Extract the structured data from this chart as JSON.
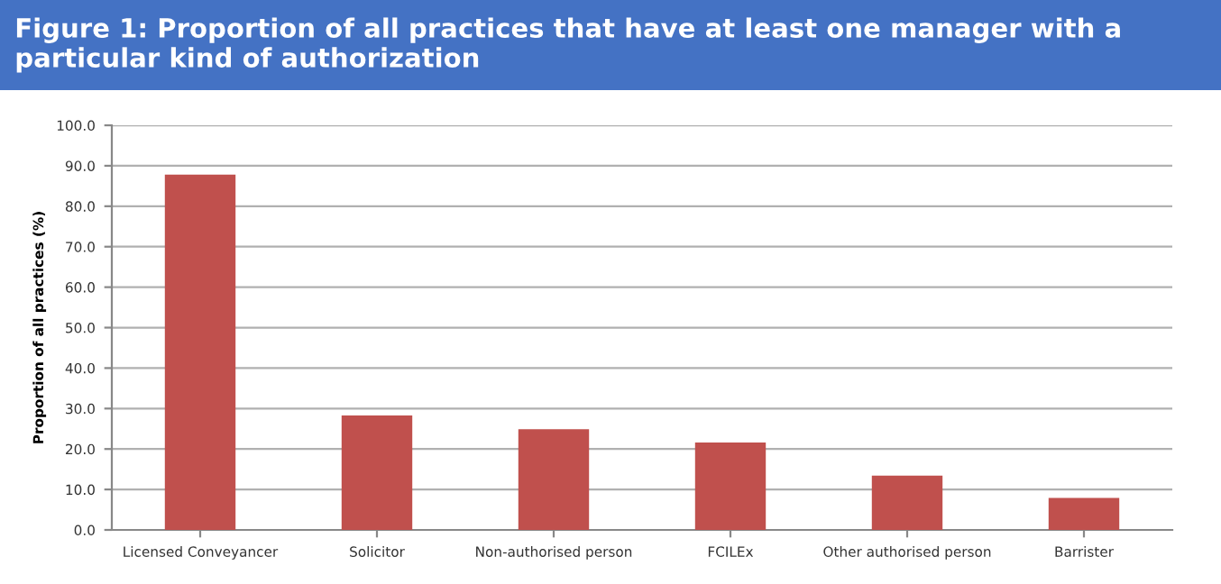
{
  "chart_data": {
    "type": "bar",
    "title": "Figure 1: Proportion of all practices that have at least one manager with a particular kind of authorization",
    "ylabel": "Proportion of all practices (%)",
    "categories": [
      "Licensed Conveyancer",
      "Solicitor",
      "Non-authorised person",
      "FCILEx",
      "Other authorised person",
      "Barrister"
    ],
    "values": [
      87.8,
      28.3,
      24.9,
      21.6,
      13.4,
      7.9
    ],
    "color": "#c0504d",
    "ylim": [
      0,
      100
    ],
    "yticks": [
      {
        "value": 0,
        "label": "0.0"
      },
      {
        "value": 10,
        "label": "10.0"
      },
      {
        "value": 20,
        "label": "20.0"
      },
      {
        "value": 30,
        "label": "30.0"
      },
      {
        "value": 40,
        "label": "40.0"
      },
      {
        "value": 50,
        "label": "50.0"
      },
      {
        "value": 60,
        "label": "60.0"
      },
      {
        "value": 70,
        "label": "70.0"
      },
      {
        "value": 80,
        "label": "80.0"
      },
      {
        "value": 90,
        "label": "90.0"
      },
      {
        "value": 100,
        "label": "100.0"
      }
    ],
    "grid": "y",
    "legend": false
  }
}
